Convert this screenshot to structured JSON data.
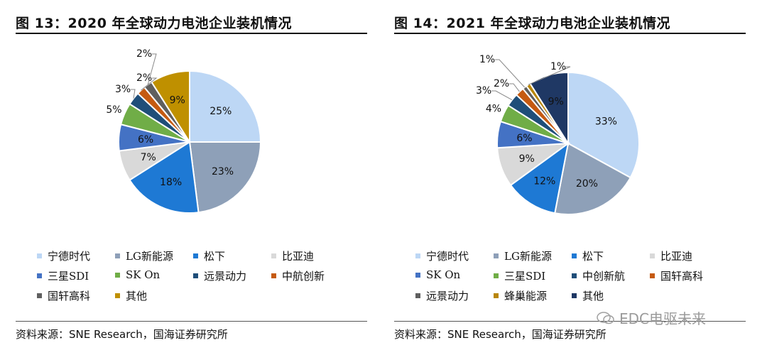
{
  "watermark": "EDC电驱未来",
  "colors": {
    "ningde": "#bdd7f5",
    "lg": "#8ea0b8",
    "song": "#1e79d4",
    "byd": "#d9d9d9",
    "samsung": "#4472c4",
    "sk": "#70ad47",
    "yuanjing": "#1f4e79",
    "zhonghang": "#c55a11",
    "guoxuan": "#5f5f5f",
    "other2020": "#bf9000",
    "fengchao": "#b8860b",
    "other2021": "#1f3864"
  },
  "chart_data": [
    {
      "type": "pie",
      "title": "图 13：2020 年全球动力电池企业装机情况",
      "source": "资料来源：SNE Research，国海证券研究所",
      "slices": [
        {
          "name": "宁德时代",
          "value": 25,
          "label": "25%",
          "color_key": "ningde",
          "label_style": "inside"
        },
        {
          "name": "LG新能源",
          "value": 23,
          "label": "23%",
          "color_key": "lg",
          "label_style": "inside"
        },
        {
          "name": "松下",
          "value": 18,
          "label": "18%",
          "color_key": "song",
          "label_style": "inside"
        },
        {
          "name": "比亚迪",
          "value": 7,
          "label": "7%",
          "color_key": "byd",
          "label_style": "inside"
        },
        {
          "name": "三星SDI",
          "value": 6,
          "label": "6%",
          "color_key": "samsung",
          "label_style": "inside"
        },
        {
          "name": "SK On",
          "value": 5,
          "label": "5%",
          "color_key": "sk",
          "label_style": "outside"
        },
        {
          "name": "远景动力",
          "value": 3,
          "label": "3%",
          "color_key": "yuanjing",
          "label_style": "leader"
        },
        {
          "name": "中航创新",
          "value": 2,
          "label": "2%",
          "color_key": "zhonghang",
          "label_style": "leader"
        },
        {
          "name": "国轩高科",
          "value": 2,
          "label": "2%",
          "color_key": "guoxuan",
          "label_style": "leader"
        },
        {
          "name": "其他",
          "value": 9,
          "label": "9%",
          "color_key": "other2020",
          "label_style": "inside"
        }
      ]
    },
    {
      "type": "pie",
      "title": "图 14：2021 年全球动力电池企业装机情况",
      "source": "资料来源：SNE Research，国海证券研究所",
      "slices": [
        {
          "name": "宁德时代",
          "value": 33,
          "label": "33%",
          "color_key": "ningde",
          "label_style": "inside"
        },
        {
          "name": "LG新能源",
          "value": 20,
          "label": "20%",
          "color_key": "lg",
          "label_style": "inside"
        },
        {
          "name": "松下",
          "value": 12,
          "label": "12%",
          "color_key": "song",
          "label_style": "inside"
        },
        {
          "name": "比亚迪",
          "value": 9,
          "label": "9%",
          "color_key": "byd",
          "label_style": "inside"
        },
        {
          "name": "SK On",
          "value": 6,
          "label": "6%",
          "color_key": "samsung",
          "label_style": "inside"
        },
        {
          "name": "三星SDI",
          "value": 4,
          "label": "4%",
          "color_key": "sk",
          "label_style": "outside"
        },
        {
          "name": "中创新航",
          "value": 3,
          "label": "3%",
          "color_key": "yuanjing",
          "label_style": "leader"
        },
        {
          "name": "国轩高科",
          "value": 2,
          "label": "2%",
          "color_key": "zhonghang",
          "label_style": "leader"
        },
        {
          "name": "远景动力",
          "value": 1,
          "label": "1%",
          "color_key": "guoxuan",
          "label_style": "leader"
        },
        {
          "name": "蜂巢能源",
          "value": 1,
          "label": "1%",
          "color_key": "fengchao",
          "label_style": "leader"
        },
        {
          "name": "其他",
          "value": 9,
          "label": "9%",
          "color_key": "other2021",
          "label_style": "inside"
        }
      ]
    }
  ]
}
